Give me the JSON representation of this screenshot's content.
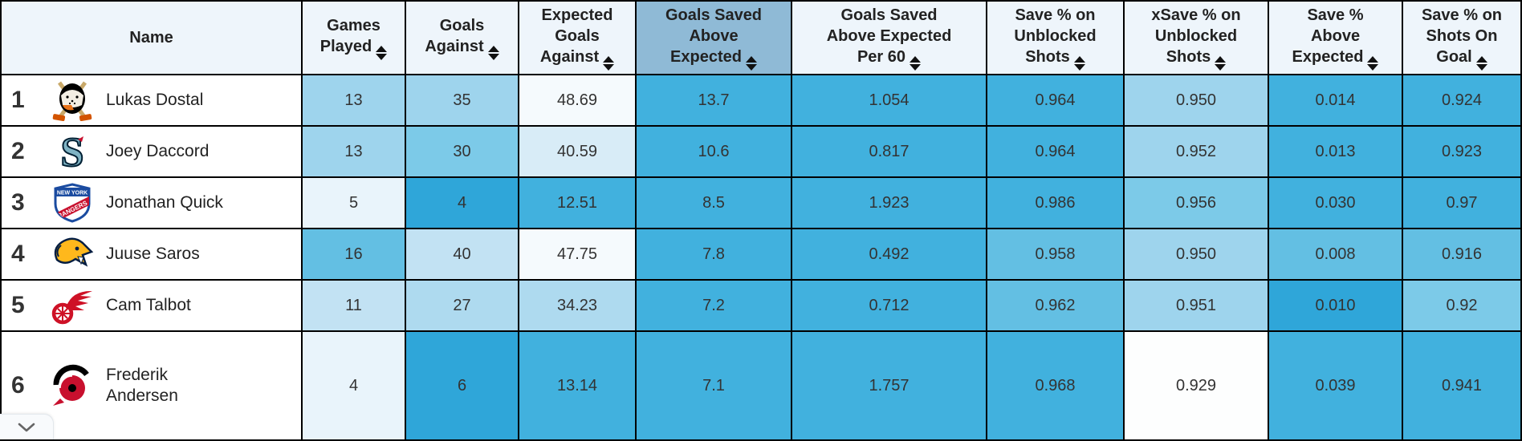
{
  "table": {
    "columns": [
      {
        "id": "name",
        "label_lines": [
          "Name"
        ],
        "sortable": false,
        "sorted": false
      },
      {
        "id": "games-played",
        "label_lines": [
          "Games",
          "Played"
        ],
        "sortable": true,
        "sorted": false
      },
      {
        "id": "goals-against",
        "label_lines": [
          "Goals",
          "Against"
        ],
        "sortable": true,
        "sorted": false
      },
      {
        "id": "expected-goals-against",
        "label_lines": [
          "Expected",
          "Goals",
          "Against"
        ],
        "sortable": true,
        "sorted": false
      },
      {
        "id": "goals-saved-above-expected",
        "label_lines": [
          "Goals Saved",
          "Above",
          "Expected"
        ],
        "sortable": true,
        "sorted": true
      },
      {
        "id": "goals-saved-above-expected-per-60",
        "label_lines": [
          "Goals Saved",
          "Above Expected",
          "Per 60"
        ],
        "sortable": true,
        "sorted": false
      },
      {
        "id": "save-pct-unblocked-shots",
        "label_lines": [
          "Save % on",
          "Unblocked",
          "Shots"
        ],
        "sortable": true,
        "sorted": false
      },
      {
        "id": "xsave-pct-unblocked-shots",
        "label_lines": [
          "xSave % on",
          "Unblocked",
          "Shots"
        ],
        "sortable": true,
        "sorted": false
      },
      {
        "id": "save-pct-above-expected",
        "label_lines": [
          "Save %",
          "Above",
          "Expected"
        ],
        "sortable": true,
        "sorted": false
      },
      {
        "id": "save-pct-shots-on-goal",
        "label_lines": [
          "Save % on",
          "Shots On",
          "Goal"
        ],
        "sortable": true,
        "sorted": false
      }
    ],
    "rows": [
      {
        "rank": "1",
        "team": "anaheim-ducks",
        "player": "Lukas Dostal",
        "values": [
          "13",
          "35",
          "48.69",
          "13.7",
          "1.054",
          "0.964",
          "0.950",
          "0.014",
          "0.924"
        ],
        "shades": [
          "s6",
          "s6",
          "s1",
          "s9",
          "s9",
          "s9",
          "s6",
          "s9",
          "s9"
        ]
      },
      {
        "rank": "2",
        "team": "seattle-kraken",
        "player": "Joey Daccord",
        "values": [
          "13",
          "30",
          "40.59",
          "10.6",
          "0.817",
          "0.964",
          "0.952",
          "0.013",
          "0.923"
        ],
        "shades": [
          "s6",
          "s7",
          "s3",
          "s9",
          "s9",
          "s9",
          "s6",
          "s9",
          "s9"
        ]
      },
      {
        "rank": "3",
        "team": "new-york-rangers",
        "player": "Jonathan Quick",
        "values": [
          "5",
          "4",
          "12.51",
          "8.5",
          "1.923",
          "0.986",
          "0.956",
          "0.030",
          "0.97"
        ],
        "shades": [
          "s2",
          "s10",
          "s9",
          "s9",
          "s9",
          "s9",
          "s7",
          "s9",
          "s9"
        ]
      },
      {
        "rank": "4",
        "team": "nashville-predators",
        "player": "Juuse Saros",
        "values": [
          "16",
          "40",
          "47.75",
          "7.8",
          "0.492",
          "0.958",
          "0.950",
          "0.008",
          "0.916"
        ],
        "shades": [
          "s8",
          "s4",
          "s1",
          "s9",
          "s9",
          "s8",
          "s6",
          "s8",
          "s8"
        ]
      },
      {
        "rank": "5",
        "team": "detroit-red-wings",
        "player": "Cam Talbot",
        "values": [
          "11",
          "27",
          "34.23",
          "7.2",
          "0.712",
          "0.962",
          "0.951",
          "0.010",
          "0.92"
        ],
        "shades": [
          "s4",
          "s5",
          "s5",
          "s9",
          "s9",
          "s8",
          "s6",
          "s10",
          "s7"
        ]
      },
      {
        "rank": "6",
        "team": "carolina-hurricanes",
        "player": "Frederik Andersen",
        "values": [
          "4",
          "6",
          "13.14",
          "7.1",
          "1.757",
          "0.968",
          "0.929",
          "0.039",
          "0.941"
        ],
        "shades": [
          "s2",
          "s10",
          "s9",
          "s9",
          "s9",
          "s9",
          "s0",
          "s9",
          "s9"
        ]
      }
    ]
  },
  "colors": {
    "header_bg": "#eef5fb",
    "sorted_header_bg": "#8fbad6",
    "border": "#000000",
    "text": "#333333",
    "shades": {
      "s0": "#fdfefe",
      "s1": "#f5fafd",
      "s2": "#e9f4fb",
      "s3": "#d8ecf7",
      "s4": "#c2e2f3",
      "s5": "#aedaef",
      "s6": "#9ed4ed",
      "s7": "#7ccae8",
      "s8": "#63bfe3",
      "s9": "#41b1de",
      "s10": "#2fa6d9"
    }
  },
  "controls": {
    "expand_button_icon": "chevron-down"
  }
}
